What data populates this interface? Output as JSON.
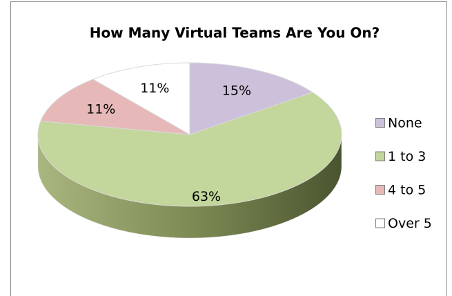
{
  "chart_data": {
    "type": "pie",
    "title": "How Many Virtual Teams Are You On?",
    "categories": [
      "None",
      "1 to 3",
      "4 to 5",
      "Over 5"
    ],
    "values": [
      15,
      63,
      11,
      11
    ],
    "value_labels": [
      "15%",
      "63%",
      "11%",
      "11%"
    ],
    "colors": [
      "#ccc0da",
      "#c3d69b",
      "#e6b9b8",
      "#ffffff"
    ],
    "legend": "right"
  }
}
